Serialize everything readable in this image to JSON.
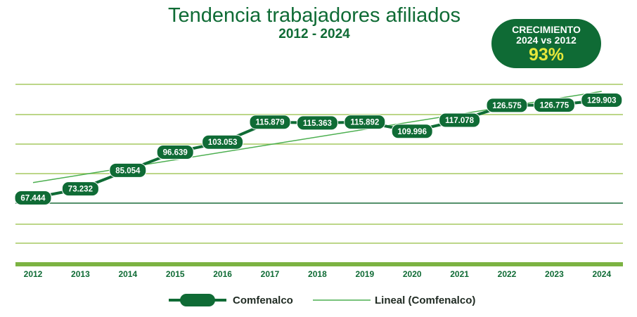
{
  "header": {
    "title": "Tendencia trabajadores afiliados",
    "subtitle": "2012 - 2024"
  },
  "badge": {
    "line1": "CRECIMIENTO",
    "line2": "2024 vs 2012",
    "value": "93%"
  },
  "colors": {
    "primary": "#0f6b35",
    "trend": "#4caf50",
    "grid": "#a5c860",
    "accent": "#e6e73b"
  },
  "chart_data": {
    "type": "line",
    "title": "Tendencia trabajadores afiliados",
    "subtitle": "2012 - 2024",
    "categories": [
      "2012",
      "2013",
      "2014",
      "2015",
      "2016",
      "2017",
      "2018",
      "2019",
      "2020",
      "2021",
      "2022",
      "2023",
      "2024"
    ],
    "series": [
      {
        "name": "Comfenalco",
        "values": [
          67444,
          73232,
          85054,
          96639,
          103053,
          115879,
          115363,
          115892,
          109996,
          117078,
          126575,
          126775,
          129903
        ],
        "labels": [
          "67.444",
          "73.232",
          "85.054",
          "96.639",
          "103.053",
          "115.879",
          "115.363",
          "115.892",
          "109.996",
          "117.078",
          "126.575",
          "126.775",
          "129.903"
        ]
      },
      {
        "name": "Lineal (Comfenalco)",
        "type": "linear-trend"
      }
    ],
    "ylim": [
      25000,
      140000
    ],
    "grid": true,
    "legend": "bottom"
  }
}
